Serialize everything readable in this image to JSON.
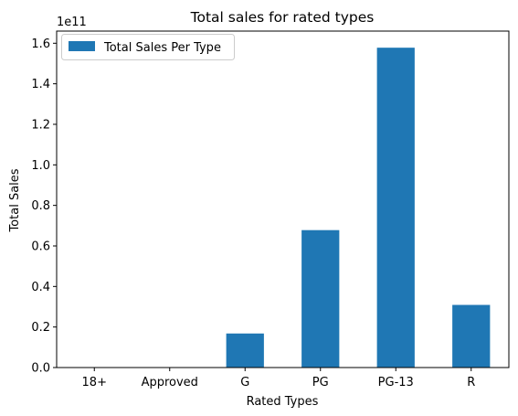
{
  "chart_data": {
    "type": "bar",
    "title": "Total sales for rated types",
    "xlabel": "Rated Types",
    "ylabel": "Total Sales",
    "y_offset_text": "1e11",
    "y_scale": 100000000000,
    "categories": [
      "18+",
      "Approved",
      "G",
      "PG",
      "PG-13",
      "R"
    ],
    "series": [
      {
        "name": "Total Sales Per Type",
        "color": "#1f77b4",
        "values": [
          150000000,
          200000000,
          16800000000,
          67800000000,
          157800000000,
          30900000000
        ]
      }
    ],
    "ylim": [
      0,
      166000000000
    ],
    "yticks": [
      0,
      20000000000,
      40000000000,
      60000000000,
      80000000000,
      100000000000,
      120000000000,
      140000000000,
      160000000000
    ],
    "ytick_labels": [
      "0.0",
      "0.2",
      "0.4",
      "0.6",
      "0.8",
      "1.0",
      "1.2",
      "1.4",
      "1.6"
    ],
    "grid": false,
    "legend_position": "upper-left"
  }
}
